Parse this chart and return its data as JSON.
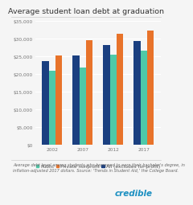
{
  "title": "Average student loan debt at graduation",
  "categories": [
    "2002",
    "2007",
    "2012",
    "2017"
  ],
  "series": {
    "Public": [
      20800,
      21700,
      25500,
      26500
    ],
    "Private nonprofit": [
      25200,
      29500,
      31200,
      32200
    ],
    "All (excludes for-profit)": [
      23500,
      25200,
      28200,
      29200
    ]
  },
  "bar_order": [
    "All (excludes for-profit)",
    "Public",
    "Private nonprofit"
  ],
  "colors": {
    "Public": "#4ec9a8",
    "Private nonprofit": "#e8732a",
    "All (excludes for-profit)": "#1a3f80"
  },
  "ylim": [
    0,
    35000
  ],
  "yticks": [
    0,
    5000,
    10000,
    15000,
    20000,
    25000,
    30000,
    35000
  ],
  "ytick_labels": [
    "$0",
    "$5,000",
    "$10,000",
    "$15,000",
    "$20,000",
    "$25,000",
    "$30,000",
    "$35,000"
  ],
  "background_color": "#f5f5f5",
  "grid_color": "#ffffff",
  "footnote_line1": "Average debt level among students who borrowed to earn their bachelor's degree, in",
  "footnote_line2": "inflation-adjusted 2017 dollars. Source: ‘Trends in Student Aid,’ the College Board.",
  "watermark": "credible",
  "bar_width": 0.22,
  "title_fontsize": 6.8,
  "tick_fontsize": 4.2,
  "legend_fontsize": 4.2,
  "footnote_fontsize": 3.6,
  "watermark_fontsize": 7.5
}
